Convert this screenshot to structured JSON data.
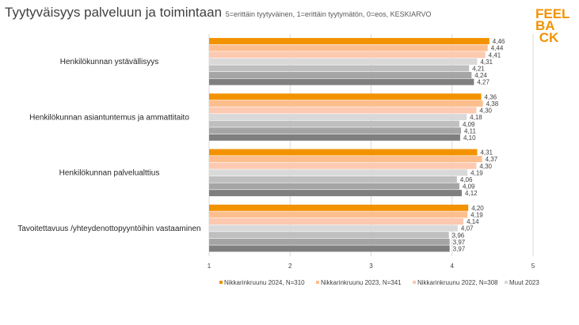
{
  "header": {
    "title": "Tyytyväisyys palveluun ja toimintaan",
    "subtitle": "5=erittäin tyytyväinen, 1=erittäin tyytymätön, 0=eos, KESKIARVO"
  },
  "logo": {
    "lines": [
      "FEEL",
      "BA",
      "CK"
    ],
    "color": "#F39200"
  },
  "chart_data": {
    "type": "bar",
    "orientation": "horizontal",
    "title": "Tyytyväisyys palveluun ja toimintaan",
    "categories": [
      "Henkilökunnan ystävällisyys",
      "Henkilökunnan asiantuntemus ja ammattitaito",
      "Henkilökunnan palvelualttius",
      "Tavoitettavuus /yhteydenottopyyntöihin vastaaminen"
    ],
    "series": [
      {
        "name": "Nikkarinkruunu 2024, N=310",
        "color": "#F39200",
        "values": [
          4.46,
          4.36,
          4.31,
          4.2
        ],
        "labels": [
          "4,46",
          "4,36",
          "4,31",
          "4,20"
        ]
      },
      {
        "name": "Nikkarinkruunu 2023, N=341",
        "color": "#FDBE8E",
        "values": [
          4.44,
          4.38,
          4.37,
          4.19
        ],
        "labels": [
          "4,44",
          "4,38",
          "4,37",
          "4,19"
        ]
      },
      {
        "name": "Nikkarinkruunu 2022, N=308",
        "color": "#FCC9B1",
        "values": [
          4.41,
          4.3,
          4.3,
          4.14
        ],
        "labels": [
          "4,41",
          "4,30",
          "4,30",
          "4,14"
        ]
      },
      {
        "name": "Muut 2023",
        "color": "#D9D9D9",
        "values": [
          4.31,
          4.18,
          4.19,
          4.07
        ],
        "labels": [
          "4,31",
          "4,18",
          "4,19",
          "4,07"
        ]
      },
      {
        "name": "",
        "color": "#BFBFBF",
        "values": [
          4.21,
          4.09,
          4.06,
          3.96
        ],
        "labels": [
          "4,21",
          "4,09",
          "4,06",
          "3,96"
        ]
      },
      {
        "name": "",
        "color": "#A5A5A5",
        "values": [
          4.24,
          4.11,
          4.09,
          3.97
        ],
        "labels": [
          "4,24",
          "4,11",
          "4,09",
          "3,97"
        ]
      },
      {
        "name": "",
        "color": "#7F7F7F",
        "values": [
          4.27,
          4.1,
          4.12,
          3.97
        ],
        "labels": [
          "4,27",
          "4,10",
          "4,12",
          "3,97"
        ]
      }
    ],
    "xlim": [
      1,
      5
    ],
    "xticks": [
      "1",
      "2",
      "3",
      "4",
      "5"
    ],
    "grid": true,
    "legend": "bottom"
  }
}
